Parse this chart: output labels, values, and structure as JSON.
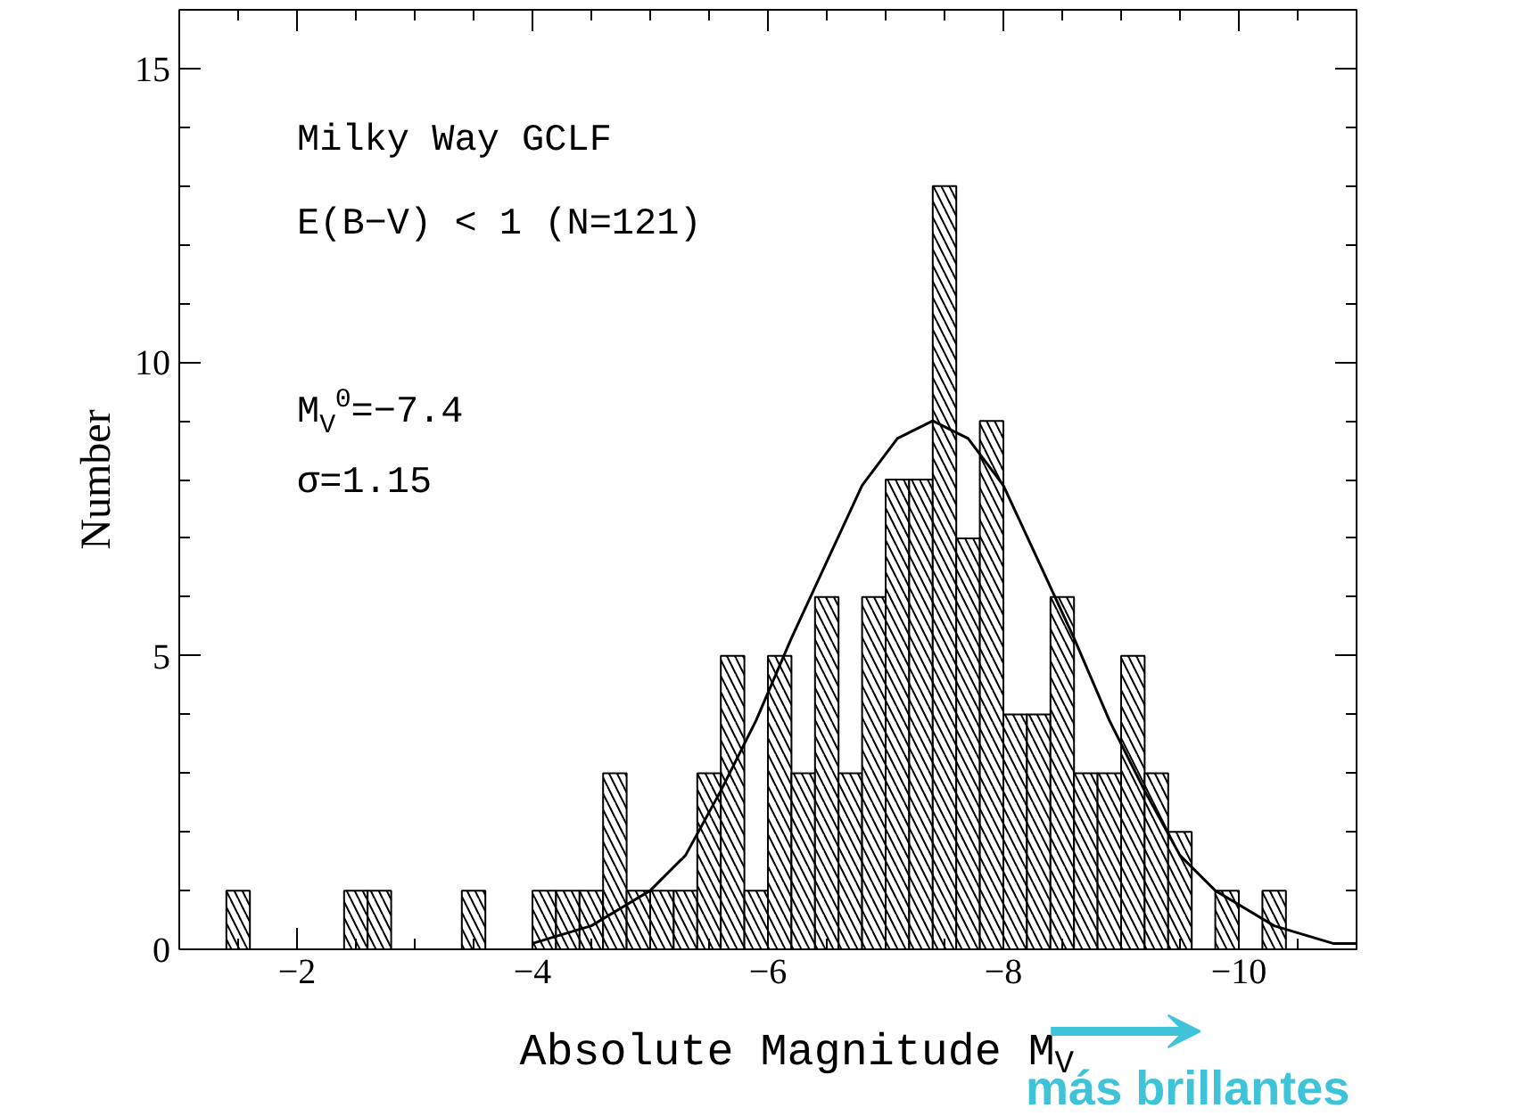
{
  "chart_data": {
    "type": "histogram",
    "xlabel": "Absolute Magnitude M$_{V}$",
    "ylabel": "Number",
    "bins": [
      -1.4,
      -1.6,
      -1.8,
      -2.0,
      -2.2,
      -2.4,
      -2.6,
      -2.8,
      -3.0,
      -3.2,
      -3.4,
      -3.6,
      -3.8,
      -4.0,
      -4.2,
      -4.4,
      -4.6,
      -4.8,
      -5.0,
      -5.2,
      -5.4,
      -5.6,
      -5.8,
      -6.0,
      -6.2,
      -6.4,
      -6.6,
      -6.8,
      -7.0,
      -7.2,
      -7.4,
      -7.6,
      -7.8,
      -8.0,
      -8.2,
      -8.4,
      -8.6,
      -8.8,
      -9.0,
      -9.2,
      -9.4,
      -9.6,
      -9.8,
      -10.0,
      -10.2,
      -10.4
    ],
    "values": [
      1,
      0,
      0,
      0,
      0,
      1,
      1,
      0,
      0,
      0,
      1,
      0,
      0,
      1,
      1,
      1,
      3,
      1,
      1,
      1,
      3,
      5,
      1,
      5,
      3,
      6,
      3,
      6,
      8,
      8,
      13,
      7,
      9,
      4,
      4,
      6,
      3,
      3,
      5,
      3,
      2,
      0,
      1,
      0,
      1
    ],
    "color": "#000000",
    "series": [
      {
        "type": "line",
        "color": "#000000",
        "x": [
          -4.0,
          -4.5,
          -5.0,
          -5.3,
          -5.6,
          -5.9,
          -6.2,
          -6.5,
          -6.8,
          -7.1,
          -7.4,
          -7.7,
          -8.0,
          -8.3,
          -8.6,
          -8.9,
          -9.2,
          -9.5,
          -9.8,
          -10.3,
          -10.8,
          -11.0
        ],
        "values": [
          0.1,
          0.4,
          1.0,
          1.6,
          2.7,
          3.9,
          5.3,
          6.6,
          7.9,
          8.7,
          9.0,
          8.7,
          7.9,
          6.6,
          5.3,
          3.9,
          2.7,
          1.6,
          1.0,
          0.4,
          0.1,
          0.1
        ]
      }
    ],
    "xlim": [
      -1,
      -11
    ],
    "ylim": [
      0,
      16
    ],
    "xticks": [
      -2,
      -4,
      -6,
      -8,
      -10
    ],
    "yticks": [
      0,
      5,
      10,
      15
    ],
    "annotations": [
      "Milky Way GCLF",
      "E(B−V) < 1 (N=121)",
      "M$_{V}$$^{0}$=−7.4",
      "σ=1.15",
      "más brillantes"
    ]
  }
}
